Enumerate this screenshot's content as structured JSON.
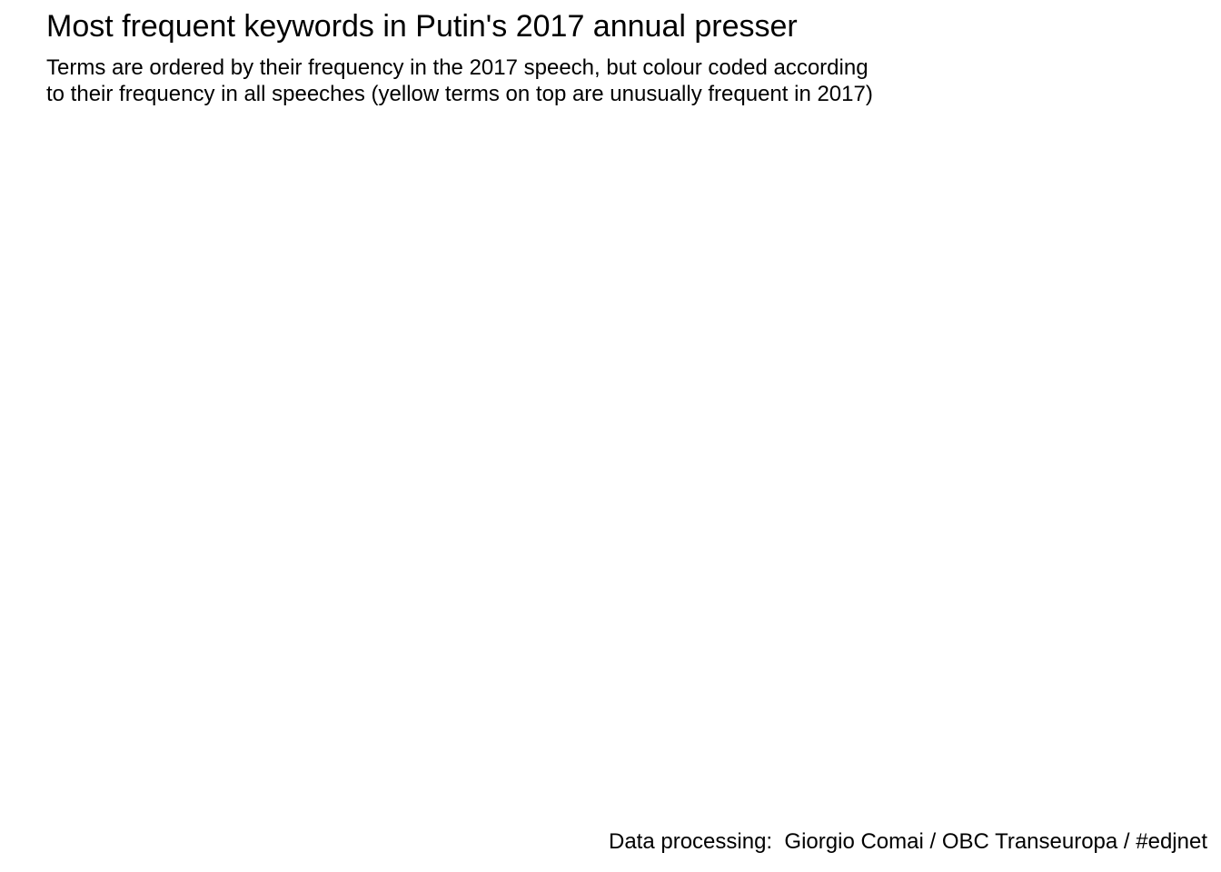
{
  "chart_data": {
    "type": "bar",
    "title": "Most frequent keywords in Putin's 2017 annual presser",
    "subtitle_lines": [
      "Terms are ordered by their frequency in the 2017 speech, but colour coded according",
      "to their frequency in all speeches (yellow terms on top are unusually frequent in 2017)"
    ],
    "caption": "Data processing:  Giorgio Comai / OBC Transeuropa / #edjnet",
    "categories": [],
    "values": [],
    "xlabel": "",
    "ylabel": ""
  }
}
